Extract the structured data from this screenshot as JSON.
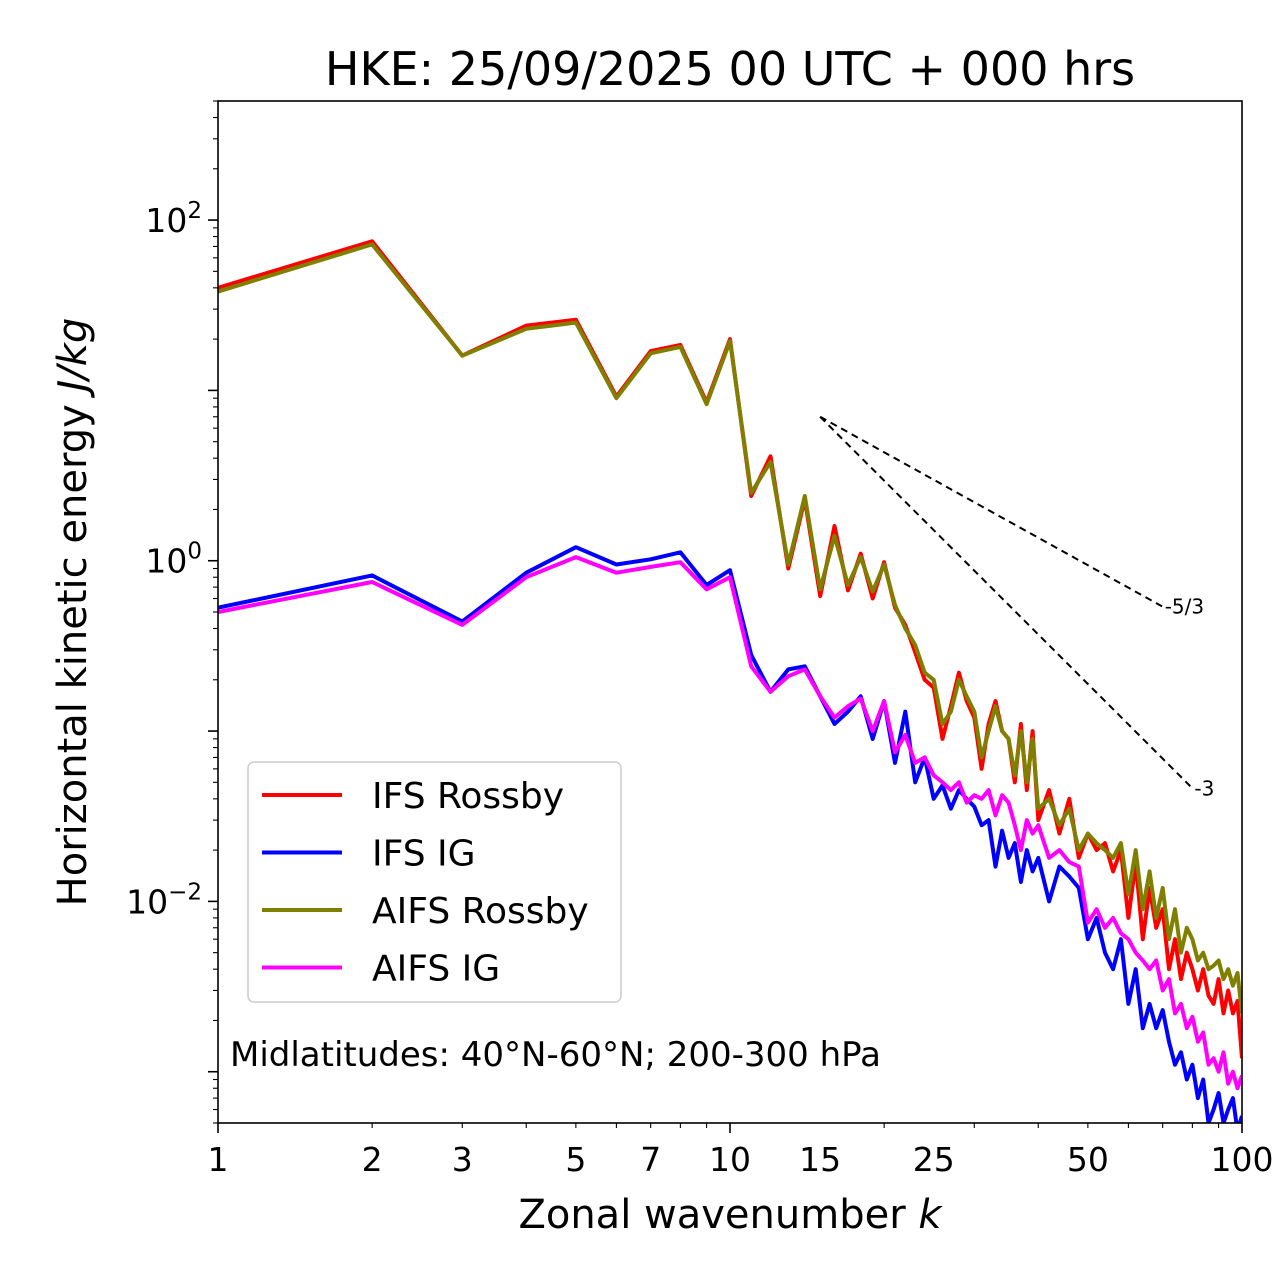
{
  "chart_data": {
    "type": "line",
    "title": "HKE: 25/09/2025 00 UTC + 000 hrs",
    "xlabel": "Zonal wavenumber",
    "xlabel_var": "k",
    "ylabel": "Horizontal kinetic energy",
    "ylabel_unit": "J/kg",
    "xscale": "log",
    "yscale": "log",
    "xlim": [
      1,
      100
    ],
    "ylim": [
      0.0005,
      500
    ],
    "xticks": [
      1,
      2,
      3,
      5,
      7,
      10,
      15,
      25,
      50,
      100
    ],
    "xtick_labels": [
      "1",
      "2",
      "3",
      "5",
      "7",
      "10",
      "15",
      "25",
      "50",
      "100"
    ],
    "yticks": [
      {
        "value": 100,
        "base": "10",
        "exp": "2"
      },
      {
        "value": 1,
        "base": "10",
        "exp": "0"
      },
      {
        "value": 0.01,
        "base": "10",
        "exp": "−2"
      }
    ],
    "annotation": "Midlatitudes: 40°N-60°N; 200-300 hPa",
    "legend_location": "lower-left",
    "series": [
      {
        "name": "IFS Rossby",
        "color": "#ff0000",
        "x": [
          1,
          2,
          3,
          4,
          5,
          6,
          7,
          8,
          9,
          10,
          11,
          12,
          13,
          14,
          15,
          16,
          17,
          18,
          19,
          20,
          21,
          22,
          23,
          24,
          25,
          26,
          27,
          28,
          29,
          30,
          31,
          32,
          33,
          34,
          35,
          36,
          37,
          38,
          39,
          40,
          42,
          44,
          46,
          48,
          50,
          52,
          54,
          56,
          58,
          60,
          62,
          64,
          66,
          68,
          70,
          72,
          74,
          76,
          78,
          80,
          82,
          84,
          86,
          88,
          90,
          92,
          94,
          96,
          98,
          100
        ],
        "values": [
          40,
          75,
          16,
          24,
          26,
          9.2,
          17,
          18.5,
          8.5,
          20,
          2.4,
          4.1,
          0.9,
          2.3,
          0.62,
          1.6,
          0.67,
          1.1,
          0.6,
          0.98,
          0.53,
          0.42,
          0.29,
          0.2,
          0.18,
          0.09,
          0.14,
          0.22,
          0.15,
          0.12,
          0.06,
          0.11,
          0.15,
          0.1,
          0.09,
          0.05,
          0.11,
          0.045,
          0.1,
          0.03,
          0.045,
          0.025,
          0.04,
          0.018,
          0.025,
          0.02,
          0.022,
          0.015,
          0.02,
          0.008,
          0.017,
          0.006,
          0.012,
          0.007,
          0.009,
          0.004,
          0.006,
          0.0035,
          0.005,
          0.004,
          0.003,
          0.004,
          0.0028,
          0.0025,
          0.0035,
          0.0022,
          0.003,
          0.0022,
          0.0026,
          0.0012
        ]
      },
      {
        "name": "IFS IG",
        "color": "#0000ff",
        "x": [
          1,
          2,
          3,
          4,
          5,
          6,
          7,
          8,
          9,
          10,
          11,
          12,
          13,
          14,
          15,
          16,
          17,
          18,
          19,
          20,
          21,
          22,
          23,
          24,
          25,
          26,
          27,
          28,
          29,
          30,
          31,
          32,
          33,
          34,
          35,
          36,
          37,
          38,
          39,
          40,
          42,
          44,
          46,
          48,
          50,
          52,
          54,
          56,
          58,
          60,
          62,
          64,
          66,
          68,
          70,
          72,
          74,
          76,
          78,
          80,
          82,
          84,
          86,
          88,
          90,
          92,
          94,
          96,
          98,
          100
        ],
        "values": [
          0.53,
          0.82,
          0.44,
          0.85,
          1.2,
          0.95,
          1.02,
          1.12,
          0.72,
          0.88,
          0.28,
          0.17,
          0.23,
          0.24,
          0.16,
          0.11,
          0.13,
          0.16,
          0.09,
          0.15,
          0.065,
          0.13,
          0.05,
          0.07,
          0.04,
          0.048,
          0.035,
          0.045,
          0.04,
          0.036,
          0.028,
          0.03,
          0.016,
          0.026,
          0.018,
          0.022,
          0.013,
          0.02,
          0.015,
          0.018,
          0.01,
          0.016,
          0.014,
          0.012,
          0.006,
          0.008,
          0.005,
          0.004,
          0.006,
          0.0025,
          0.004,
          0.0018,
          0.0025,
          0.0018,
          0.0023,
          0.0015,
          0.0011,
          0.0013,
          0.0009,
          0.0011,
          0.0007,
          0.0009,
          0.0005,
          0.0006,
          0.00075,
          0.0005,
          0.0006,
          0.0007,
          0.00045,
          0.00055
        ]
      },
      {
        "name": "AIFS Rossby",
        "color": "#808000",
        "x": [
          1,
          2,
          3,
          4,
          5,
          6,
          7,
          8,
          9,
          10,
          11,
          12,
          13,
          14,
          15,
          16,
          17,
          18,
          19,
          20,
          21,
          22,
          23,
          24,
          25,
          26,
          27,
          28,
          29,
          30,
          31,
          32,
          33,
          34,
          35,
          36,
          37,
          38,
          39,
          40,
          42,
          44,
          46,
          48,
          50,
          52,
          54,
          56,
          58,
          60,
          62,
          64,
          66,
          68,
          70,
          72,
          74,
          76,
          78,
          80,
          82,
          84,
          86,
          88,
          90,
          92,
          94,
          96,
          98,
          100
        ],
        "values": [
          38,
          72,
          16,
          23,
          25,
          9.0,
          16.5,
          18,
          8.3,
          19.5,
          2.5,
          3.8,
          0.95,
          2.4,
          0.68,
          1.4,
          0.72,
          1.05,
          0.66,
          0.95,
          0.55,
          0.4,
          0.32,
          0.22,
          0.2,
          0.11,
          0.13,
          0.2,
          0.16,
          0.13,
          0.07,
          0.1,
          0.14,
          0.1,
          0.09,
          0.055,
          0.1,
          0.05,
          0.09,
          0.035,
          0.04,
          0.028,
          0.035,
          0.02,
          0.025,
          0.022,
          0.02,
          0.018,
          0.022,
          0.011,
          0.02,
          0.009,
          0.015,
          0.008,
          0.012,
          0.006,
          0.009,
          0.005,
          0.007,
          0.006,
          0.0045,
          0.005,
          0.004,
          0.0042,
          0.0045,
          0.0035,
          0.004,
          0.0032,
          0.0038,
          0.0022
        ]
      },
      {
        "name": "AIFS IG",
        "color": "#ff00ff",
        "x": [
          1,
          2,
          3,
          4,
          5,
          6,
          7,
          8,
          9,
          10,
          11,
          12,
          13,
          14,
          15,
          16,
          17,
          18,
          19,
          20,
          21,
          22,
          23,
          24,
          25,
          26,
          27,
          28,
          29,
          30,
          31,
          32,
          33,
          34,
          35,
          36,
          37,
          38,
          39,
          40,
          42,
          44,
          46,
          48,
          50,
          52,
          54,
          56,
          58,
          60,
          62,
          64,
          66,
          68,
          70,
          72,
          74,
          76,
          78,
          80,
          82,
          84,
          86,
          88,
          90,
          92,
          94,
          96,
          98,
          100
        ],
        "values": [
          0.5,
          0.75,
          0.42,
          0.8,
          1.05,
          0.85,
          0.92,
          0.98,
          0.68,
          0.8,
          0.24,
          0.17,
          0.21,
          0.23,
          0.16,
          0.12,
          0.14,
          0.155,
          0.1,
          0.15,
          0.075,
          0.095,
          0.065,
          0.07,
          0.055,
          0.05,
          0.045,
          0.05,
          0.038,
          0.042,
          0.04,
          0.045,
          0.032,
          0.042,
          0.038,
          0.028,
          0.02,
          0.03,
          0.025,
          0.028,
          0.018,
          0.02,
          0.017,
          0.016,
          0.0075,
          0.009,
          0.007,
          0.008,
          0.0065,
          0.006,
          0.005,
          0.0045,
          0.004,
          0.0045,
          0.003,
          0.0035,
          0.0022,
          0.0025,
          0.0018,
          0.0021,
          0.0015,
          0.0017,
          0.0011,
          0.0012,
          0.001,
          0.0013,
          0.00085,
          0.001,
          0.0008,
          0.00095
        ]
      }
    ],
    "reference_slopes": [
      {
        "label": "-5/3",
        "slope": -1.6667,
        "x_start": 15,
        "y_start": 7,
        "x_end": 70
      },
      {
        "label": "-3",
        "slope": -3,
        "x_start": 15,
        "y_start": 7,
        "x_end": 80
      }
    ]
  }
}
